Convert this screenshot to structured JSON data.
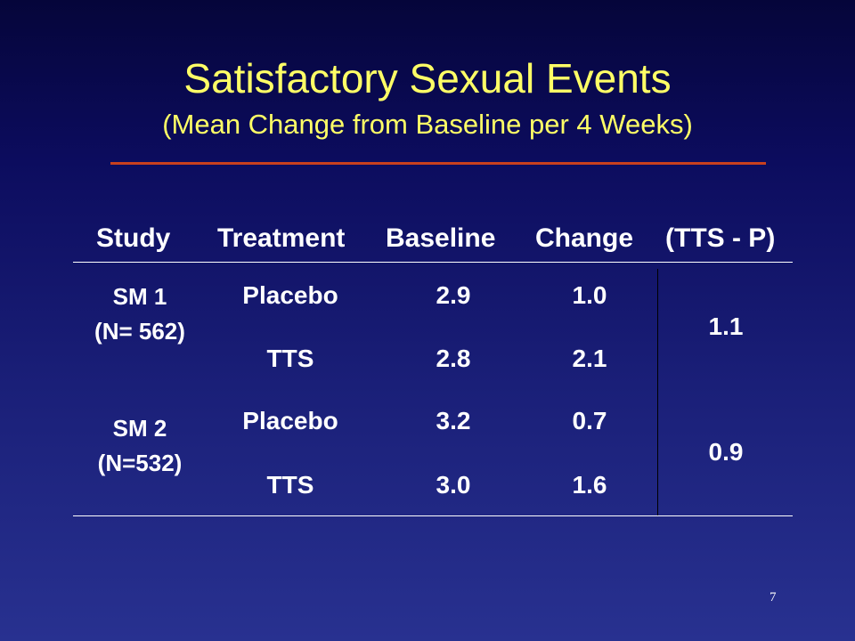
{
  "slide": {
    "title": "Satisfactory Sexual Events",
    "subtitle": "(Mean Change from Baseline per 4 Weeks)",
    "page_number": "7"
  },
  "table": {
    "headers": {
      "study": "Study",
      "treatment": "Treatment",
      "baseline": "Baseline",
      "change": "Change",
      "difference": "(TTS - P)"
    },
    "studies": [
      {
        "name": "SM 1",
        "n": "(N= 562)",
        "difference": "1.1",
        "rows": [
          {
            "treatment": "Placebo",
            "baseline": "2.9",
            "change": "1.0"
          },
          {
            "treatment": "TTS",
            "baseline": "2.8",
            "change": "2.1"
          }
        ]
      },
      {
        "name": "SM 2",
        "n": "(N=532)",
        "difference": "0.9",
        "rows": [
          {
            "treatment": "Placebo",
            "baseline": "3.2",
            "change": "0.7"
          },
          {
            "treatment": "TTS",
            "baseline": "3.0",
            "change": "1.6"
          }
        ]
      }
    ]
  }
}
